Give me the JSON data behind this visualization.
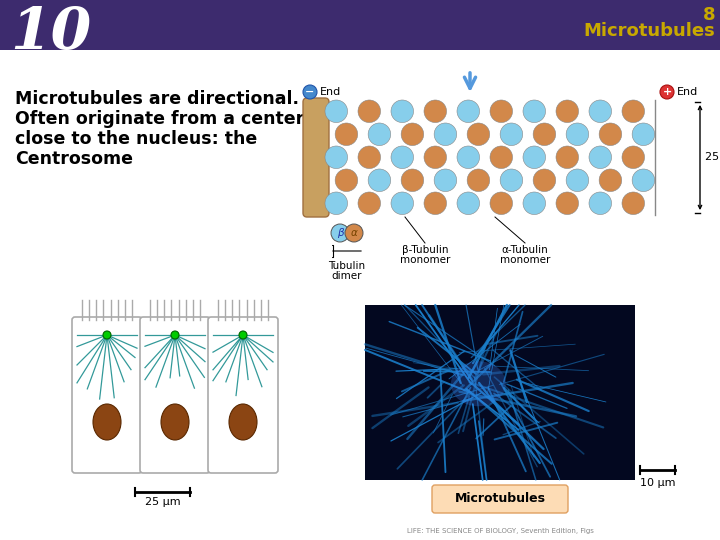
{
  "slide_number": "10",
  "slide_number_color": "#FFFFFF",
  "header_bg_color": "#3D2B6E",
  "header_text_color": "#C8A800",
  "body_bg_color": "#FFFFFF",
  "main_text_lines": [
    "Microtubules are directional.",
    "Often originate from a center",
    "close to the nucleus: the",
    "Centrosome"
  ],
  "main_text_color": "#000000",
  "main_text_fontsize": 12.5,
  "slide_num_fontsize": 42,
  "header_num_8_fontsize": 13,
  "header_label_fontsize": 13,
  "mt_blue": "#87CEEB",
  "mt_orange": "#D2884A",
  "tube_edge_color": "#A07040",
  "fluor_bg": "#030820",
  "fluor_fiber_color": "#1A7FCC",
  "cell_outline_color": "#AAAAAA",
  "cell_line_color": "#008080",
  "nucleus_color": "#8B4513",
  "label_bg_color": "#FDDCB5"
}
